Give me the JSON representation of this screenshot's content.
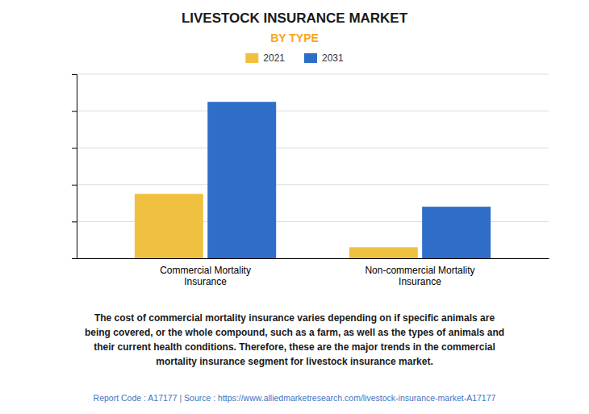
{
  "chart_data": {
    "type": "bar",
    "title": "LIVESTOCK INSURANCE MARKET",
    "subtitle": "BY TYPE",
    "categories": [
      "Commercial Mortality\nInsurance",
      "Non-commercial Mortality\nInsurance"
    ],
    "series": [
      {
        "name": "2021",
        "color": "#F0C040",
        "values": [
          3.5,
          0.6
        ]
      },
      {
        "name": "2031",
        "color": "#2E6EC8",
        "values": [
          8.5,
          2.8
        ]
      }
    ],
    "ylim": [
      0,
      10
    ],
    "yticks": [
      0,
      2,
      4,
      6,
      8,
      10
    ],
    "grid": true,
    "legend": "top",
    "tick_labels": "x",
    "annotations": [
      "The cost of commercial mortality insurance varies depending on if specific animals are\nbeing covered, or the whole compound, such as a farm, as well as the types of animals and\ntheir current health conditions.  Therefore, these are the major trends in the commercial\nmortality insurance segment for livestock insurance market.",
      "Report Code : A17177  |  Source : https://www.alliedmarketresearch.com/livestock-insurance-market-A17177"
    ]
  }
}
